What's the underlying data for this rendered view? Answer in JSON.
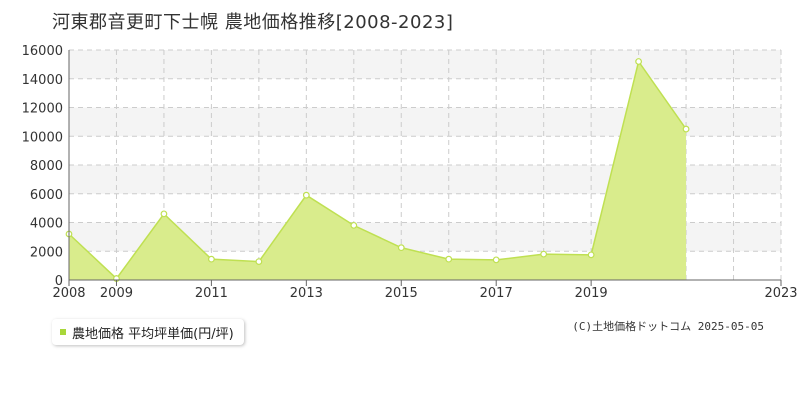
{
  "colors": {
    "fill": "#d9ec8c",
    "line": "#bfe052",
    "point_stroke": "#bfe052",
    "band": "#f4f4f4",
    "grid": "#cccccc",
    "axis": "#666666",
    "legend_marker": "#a8d73a"
  },
  "chart_data": {
    "type": "area",
    "title": "河東郡音更町下士幌 農地価格推移[2008-2023]",
    "xlabel": "",
    "ylabel": "",
    "x": [
      2008,
      2009,
      2010,
      2011,
      2012,
      2013,
      2014,
      2015,
      2016,
      2017,
      2018,
      2019,
      2020,
      2021,
      2022,
      2023
    ],
    "series": [
      {
        "name": "農地価格 平均坪単価(円/坪)",
        "values": [
          3200,
          100,
          4600,
          1450,
          1280,
          5900,
          3800,
          2250,
          1450,
          1400,
          1800,
          1750,
          15200,
          10500,
          null,
          null
        ]
      }
    ],
    "xlim": [
      2008,
      2023
    ],
    "ylim": [
      0,
      16000
    ],
    "y_ticks": [
      0,
      2000,
      4000,
      6000,
      8000,
      10000,
      12000,
      14000,
      16000
    ],
    "x_tick_labels": [
      "2008",
      "2009",
      "2011",
      "2013",
      "2015",
      "2017",
      "2019",
      "2023"
    ],
    "grid": true,
    "legend": "bottom-left"
  },
  "legend": {
    "label": "農地価格 平均坪単価(円/坪)"
  },
  "copyright": "(C)土地価格ドットコム 2025-05-05"
}
